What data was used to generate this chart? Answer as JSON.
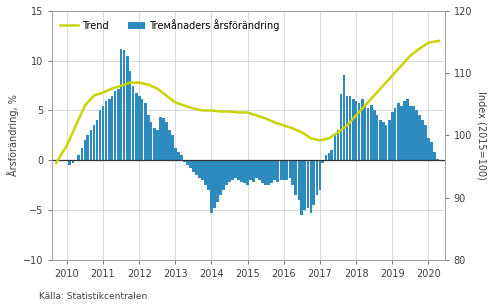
{
  "ylabel_left": "Årsförändring, %",
  "ylabel_right": "Index (2015=100)",
  "source": "Källa: Statistikcentralen",
  "legend_trend": "Trend",
  "legend_bar": "Trемånaders årsförändring",
  "ylim_left": [
    -10,
    15
  ],
  "ylim_right": [
    80,
    120
  ],
  "xlim": [
    2009.6,
    2020.45
  ],
  "bar_color": "#2e8bc0",
  "trend_color": "#c8d400",
  "zero_line_color": "#333333",
  "background_color": "#ffffff",
  "grid_color": "#cccccc",
  "bar_x": [
    2010.08,
    2010.17,
    2010.25,
    2010.33,
    2010.42,
    2010.5,
    2010.58,
    2010.67,
    2010.75,
    2010.83,
    2010.92,
    2011.0,
    2011.08,
    2011.17,
    2011.25,
    2011.33,
    2011.42,
    2011.5,
    2011.58,
    2011.67,
    2011.75,
    2011.83,
    2011.92,
    2012.0,
    2012.08,
    2012.17,
    2012.25,
    2012.33,
    2012.42,
    2012.5,
    2012.58,
    2012.67,
    2012.75,
    2012.83,
    2012.92,
    2013.0,
    2013.08,
    2013.17,
    2013.25,
    2013.33,
    2013.42,
    2013.5,
    2013.58,
    2013.67,
    2013.75,
    2013.83,
    2013.92,
    2014.0,
    2014.08,
    2014.17,
    2014.25,
    2014.33,
    2014.42,
    2014.5,
    2014.58,
    2014.67,
    2014.75,
    2014.83,
    2014.92,
    2015.0,
    2015.08,
    2015.17,
    2015.25,
    2015.33,
    2015.42,
    2015.5,
    2015.58,
    2015.67,
    2015.75,
    2015.83,
    2015.92,
    2016.0,
    2016.08,
    2016.17,
    2016.25,
    2016.33,
    2016.42,
    2016.5,
    2016.58,
    2016.67,
    2016.75,
    2016.83,
    2016.92,
    2017.0,
    2017.08,
    2017.17,
    2017.25,
    2017.33,
    2017.42,
    2017.5,
    2017.58,
    2017.67,
    2017.75,
    2017.83,
    2017.92,
    2018.0,
    2018.08,
    2018.17,
    2018.25,
    2018.33,
    2018.42,
    2018.5,
    2018.58,
    2018.67,
    2018.75,
    2018.83,
    2018.92,
    2019.0,
    2019.08,
    2019.17,
    2019.25,
    2019.33,
    2019.42,
    2019.5,
    2019.58,
    2019.67,
    2019.75,
    2019.83,
    2019.92,
    2020.0,
    2020.08,
    2020.17,
    2020.25
  ],
  "bar_values": [
    -0.5,
    -0.3,
    0.0,
    0.5,
    1.2,
    2.0,
    2.5,
    3.0,
    3.5,
    4.0,
    5.0,
    5.5,
    6.0,
    6.2,
    6.5,
    7.0,
    7.2,
    11.2,
    11.1,
    10.5,
    9.0,
    7.5,
    6.8,
    6.5,
    6.2,
    5.8,
    4.5,
    3.8,
    3.2,
    3.0,
    4.3,
    4.2,
    3.8,
    3.0,
    2.5,
    1.2,
    0.8,
    0.5,
    -0.2,
    -0.5,
    -0.8,
    -1.2,
    -1.5,
    -1.8,
    -2.0,
    -2.5,
    -3.0,
    -5.3,
    -4.8,
    -4.2,
    -3.5,
    -3.0,
    -2.5,
    -2.2,
    -2.0,
    -1.8,
    -2.0,
    -2.2,
    -2.3,
    -2.5,
    -2.0,
    -2.2,
    -1.8,
    -2.0,
    -2.3,
    -2.5,
    -2.5,
    -2.3,
    -2.0,
    -2.2,
    -2.0,
    -2.0,
    -2.0,
    -1.8,
    -2.5,
    -3.5,
    -4.0,
    -5.5,
    -5.0,
    -4.8,
    -5.3,
    -4.5,
    -3.5,
    -3.0,
    -0.3,
    0.5,
    0.7,
    1.0,
    2.5,
    3.0,
    6.7,
    8.6,
    6.5,
    6.5,
    6.2,
    6.0,
    5.8,
    6.2,
    5.5,
    5.2,
    5.6,
    5.0,
    4.5,
    4.0,
    3.8,
    3.5,
    4.0,
    4.8,
    5.2,
    5.8,
    5.5,
    6.0,
    6.2,
    5.5,
    5.5,
    5.0,
    4.5,
    4.0,
    3.5,
    2.2,
    1.8,
    0.8,
    0.1
  ],
  "trend_x": [
    2009.7,
    2010.0,
    2010.25,
    2010.5,
    2010.75,
    2011.0,
    2011.25,
    2011.5,
    2011.75,
    2012.0,
    2012.25,
    2012.5,
    2012.75,
    2013.0,
    2013.25,
    2013.5,
    2013.75,
    2014.0,
    2014.25,
    2014.5,
    2014.75,
    2015.0,
    2015.25,
    2015.5,
    2015.75,
    2016.0,
    2016.25,
    2016.5,
    2016.75,
    2017.0,
    2017.25,
    2017.5,
    2017.75,
    2018.0,
    2018.25,
    2018.5,
    2018.75,
    2019.0,
    2019.25,
    2019.5,
    2019.75,
    2020.0,
    2020.3
  ],
  "trend_y": [
    -0.3,
    1.5,
    3.5,
    5.5,
    6.5,
    6.8,
    7.2,
    7.5,
    7.8,
    7.8,
    7.6,
    7.2,
    6.5,
    5.8,
    5.5,
    5.2,
    5.0,
    5.0,
    4.9,
    4.9,
    4.8,
    4.8,
    4.5,
    4.2,
    3.8,
    3.5,
    3.2,
    2.8,
    2.2,
    2.0,
    2.2,
    2.8,
    3.5,
    4.5,
    5.5,
    6.5,
    7.5,
    8.5,
    9.5,
    10.5,
    11.2,
    11.8,
    12.0
  ]
}
